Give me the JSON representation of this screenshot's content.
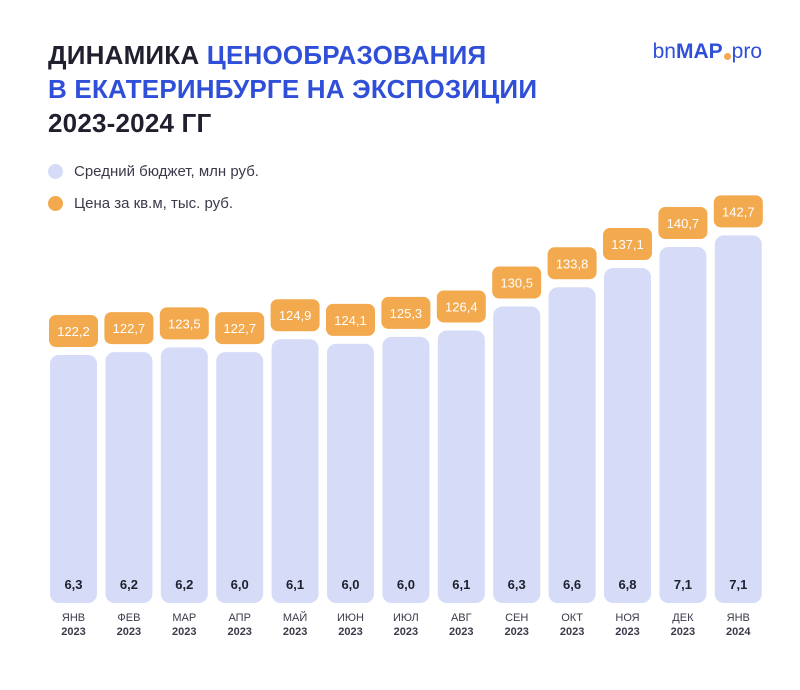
{
  "header": {
    "title_part1": "ДИНАМИКА ",
    "title_part1_accent": "ЦЕНООБРАЗОВАНИЯ",
    "title_line2": "В ЕКАТЕРИНБУРГЕ НА ЭКСПОЗИЦИИ",
    "title_line3": "2023-2024 ГГ"
  },
  "logo": {
    "part1": "bn",
    "part2": "MAP",
    "part3": "pro"
  },
  "colors": {
    "accent_blue": "#2f4fd8",
    "bar": "#d6dcf7",
    "badge": "#f3a94d",
    "text": "#1f1f2e"
  },
  "chart_data": {
    "type": "bar",
    "legend": [
      {
        "label": "Средний бюджет, млн руб.",
        "color": "#d6dcf7"
      },
      {
        "label": "Цена за кв.м, тыс. руб.",
        "color": "#f3a94d"
      }
    ],
    "categories": [
      [
        "ЯНВ",
        "2023"
      ],
      [
        "ФЕВ",
        "2023"
      ],
      [
        "МАР",
        "2023"
      ],
      [
        "АПР",
        "2023"
      ],
      [
        "МАЙ",
        "2023"
      ],
      [
        "ИЮН",
        "2023"
      ],
      [
        "ИЮЛ",
        "2023"
      ],
      [
        "АВГ",
        "2023"
      ],
      [
        "СЕН",
        "2023"
      ],
      [
        "ОКТ",
        "2023"
      ],
      [
        "НОЯ",
        "2023"
      ],
      [
        "ДЕК",
        "2023"
      ],
      [
        "ЯНВ",
        "2024"
      ]
    ],
    "series": [
      {
        "name": "Средний бюджет, млн руб.",
        "values": [
          6.3,
          6.2,
          6.2,
          6.0,
          6.1,
          6.0,
          6.0,
          6.1,
          6.3,
          6.6,
          6.8,
          7.1,
          7.1
        ],
        "labels": [
          "6,3",
          "6,2",
          "6,2",
          "6,0",
          "6,1",
          "6,0",
          "6,0",
          "6,1",
          "6,3",
          "6,6",
          "6,8",
          "7,1",
          "7,1"
        ]
      },
      {
        "name": "Цена за кв.м, тыс. руб.",
        "values": [
          122.2,
          122.7,
          123.5,
          122.7,
          124.9,
          124.1,
          125.3,
          126.4,
          130.5,
          133.8,
          137.1,
          140.7,
          142.7
        ],
        "labels": [
          "122,2",
          "122,7",
          "123,5",
          "122,7",
          "124,9",
          "124,1",
          "125,3",
          "126,4",
          "130,5",
          "133,8",
          "137,1",
          "140,7",
          "142,7"
        ]
      }
    ],
    "grid": false,
    "legend_placement": "top-left"
  }
}
